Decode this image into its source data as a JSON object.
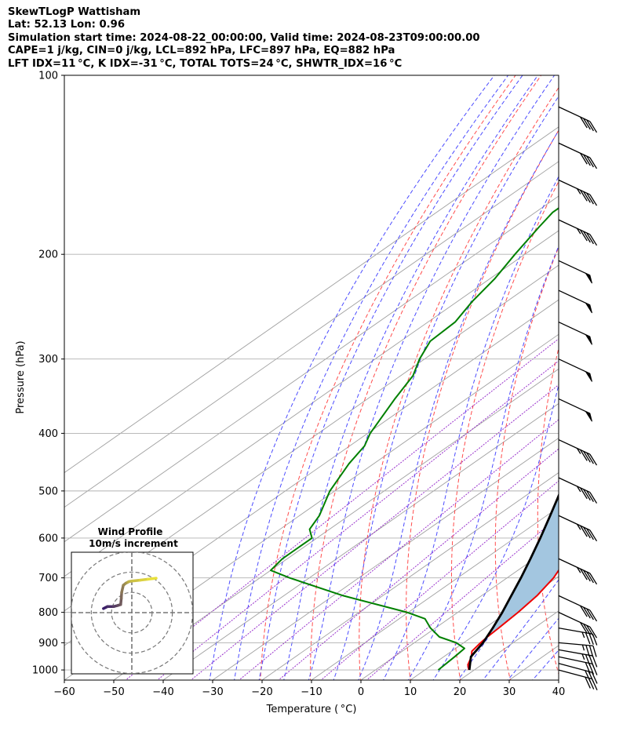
{
  "header": {
    "line1": "SkewTLogP Wattisham",
    "line2": "Lat: 52.13   Lon: 0.96",
    "line3": "Simulation start time: 2024-08-22_00:00:00, Valid time: 2024-08-23T09:00:00.00",
    "line4": "CAPE=1 j/kg, CIN=0 j/kg, LCL=892 hPa, LFC=897 hPa, EQ=882 hPa",
    "line5": "LFT IDX=11 °C, K IDX=-31 °C, TOTAL TOTS=24 °C, SHWTR_IDX=16 °C"
  },
  "colors": {
    "temperature": "#ee0000",
    "dewpoint": "#008000",
    "parcel": "#000000",
    "cape_fill": "#a3c6e0",
    "dry_adiabat": "#ff4c4c",
    "moist_adiabat": "#4c4cff",
    "mixing_ratio": "#9932cc",
    "isotherm": "#a0a0a0",
    "hodo_start": "#3b1f6a",
    "hodo_end": "#e8e03c"
  },
  "chart_data": {
    "type": "line",
    "title": "SkewTLogP Wattisham",
    "xlabel": "Temperature ( °C)",
    "ylabel": "Pressure (hPa)",
    "xlim": [
      -60,
      40
    ],
    "ylim": [
      1040,
      100
    ],
    "y_scale": "log",
    "skew_offset_deg_per_log10_p": 172,
    "x_ticks": [
      -60,
      -50,
      -40,
      -30,
      -20,
      -10,
      0,
      10,
      20,
      30,
      40
    ],
    "x_tick_labels": [
      "−60",
      "−50",
      "−40",
      "−30",
      "−20",
      "−10",
      "0",
      "10",
      "20",
      "30",
      "40"
    ],
    "y_ticks": [
      1000,
      900,
      800,
      700,
      600,
      500,
      400,
      300,
      200,
      100
    ],
    "y_tick_labels": [
      "1000",
      "900",
      "800",
      "700",
      "600",
      "500",
      "400",
      "300",
      "200",
      "100"
    ],
    "grid": true,
    "series": [
      {
        "role": "temperature",
        "points": [
          [
            1000,
            18.9
          ],
          [
            980,
            17.2
          ],
          [
            950,
            15.6
          ],
          [
            930,
            14.1
          ],
          [
            900,
            13.4
          ],
          [
            880,
            13.1
          ],
          [
            850,
            12.8
          ],
          [
            800,
            12.2
          ],
          [
            750,
            11.2
          ],
          [
            700,
            9.4
          ],
          [
            650,
            6.5
          ],
          [
            600,
            2.8
          ],
          [
            550,
            -1.4
          ],
          [
            500,
            -6.4
          ],
          [
            450,
            -11.6
          ],
          [
            400,
            -16.6
          ],
          [
            350,
            -22.6
          ],
          [
            300,
            -29.4
          ],
          [
            280,
            -33.0
          ],
          [
            250,
            -39.0
          ],
          [
            230,
            -42.5
          ],
          [
            210,
            -46.5
          ],
          [
            200,
            -49.0
          ],
          [
            180,
            -52.5
          ],
          [
            160,
            -55.5
          ],
          [
            150,
            -57.0
          ],
          [
            140,
            -58.5
          ],
          [
            130,
            -60.0
          ],
          [
            120,
            -61.5
          ],
          [
            110,
            -63.0
          ],
          [
            100,
            -64.5
          ]
        ]
      },
      {
        "role": "dewpoint",
        "points": [
          [
            1000,
            12.7
          ],
          [
            950,
            12.2
          ],
          [
            920,
            11.8
          ],
          [
            900,
            8.5
          ],
          [
            880,
            3.4
          ],
          [
            850,
            -1.0
          ],
          [
            820,
            -4.8
          ],
          [
            800,
            -10.3
          ],
          [
            750,
            -28.0
          ],
          [
            700,
            -44.0
          ],
          [
            680,
            -50.0
          ],
          [
            650,
            -51.0
          ],
          [
            600,
            -51.0
          ],
          [
            580,
            -54.0
          ],
          [
            550,
            -56.0
          ],
          [
            500,
            -61.0
          ],
          [
            450,
            -65.0
          ],
          [
            420,
            -67.0
          ],
          [
            400,
            -69.5
          ],
          [
            350,
            -74.5
          ],
          [
            320,
            -77.5
          ],
          [
            300,
            -81.0
          ],
          [
            280,
            -84.0
          ],
          [
            260,
            -84.5
          ],
          [
            240,
            -87.0
          ],
          [
            220,
            -89.0
          ],
          [
            200,
            -92.0
          ],
          [
            180,
            -95.0
          ],
          [
            170,
            -96.5
          ],
          [
            150,
            -96.5
          ],
          [
            100,
            -101.0
          ]
        ]
      },
      {
        "role": "parcel",
        "points": [
          [
            1000,
            19.0
          ],
          [
            950,
            15.5
          ],
          [
            900,
            13.9
          ],
          [
            850,
            11.6
          ],
          [
            800,
            9.0
          ],
          [
            750,
            6.0
          ],
          [
            700,
            2.8
          ],
          [
            650,
            -0.8
          ],
          [
            600,
            -4.8
          ],
          [
            550,
            -9.3
          ],
          [
            500,
            -14.3
          ],
          [
            450,
            -20.2
          ],
          [
            400,
            -27.2
          ],
          [
            350,
            -35.4
          ],
          [
            300,
            -45.0
          ],
          [
            250,
            -57.2
          ],
          [
            200,
            -72.0
          ],
          [
            150,
            -91.0
          ],
          [
            100,
            -117.0
          ]
        ]
      }
    ],
    "isotherms": [
      -120,
      -110,
      -100,
      -90,
      -80,
      -70,
      -60,
      -50,
      -40,
      -30,
      -20,
      -10,
      0,
      10,
      20,
      30,
      40
    ],
    "dry_adiabats_K": [
      250,
      260,
      270,
      280,
      290,
      300,
      310,
      320,
      330,
      340,
      350,
      360,
      370,
      380,
      390
    ],
    "moist_adiabats_C": [
      -30,
      -25,
      -20,
      -15,
      -10,
      -5,
      0,
      5,
      10,
      15,
      20,
      25,
      30,
      35
    ],
    "mixing_ratios_gkg": [
      0.05,
      0.1,
      0.2,
      0.5,
      1,
      2,
      4
    ],
    "wind_barbs": [
      {
        "p": 1000,
        "dir": 255,
        "speed_kt": 30
      },
      {
        "p": 975,
        "dir": 255,
        "speed_kt": 30
      },
      {
        "p": 950,
        "dir": 258,
        "speed_kt": 30
      },
      {
        "p": 925,
        "dir": 260,
        "speed_kt": 35
      },
      {
        "p": 900,
        "dir": 265,
        "speed_kt": 35
      },
      {
        "p": 850,
        "dir": 260,
        "speed_kt": 35
      },
      {
        "p": 800,
        "dir": 245,
        "speed_kt": 40
      },
      {
        "p": 750,
        "dir": 245,
        "speed_kt": 40
      },
      {
        "p": 650,
        "dir": 245,
        "speed_kt": 45
      },
      {
        "p": 550,
        "dir": 245,
        "speed_kt": 45
      },
      {
        "p": 475,
        "dir": 245,
        "speed_kt": 45
      },
      {
        "p": 410,
        "dir": 245,
        "speed_kt": 45
      },
      {
        "p": 350,
        "dir": 245,
        "speed_kt": 50
      },
      {
        "p": 300,
        "dir": 245,
        "speed_kt": 50
      },
      {
        "p": 260,
        "dir": 245,
        "speed_kt": 50
      },
      {
        "p": 230,
        "dir": 245,
        "speed_kt": 50
      },
      {
        "p": 205,
        "dir": 245,
        "speed_kt": 50
      },
      {
        "p": 175,
        "dir": 245,
        "speed_kt": 45
      },
      {
        "p": 150,
        "dir": 245,
        "speed_kt": 45
      },
      {
        "p": 130,
        "dir": 245,
        "speed_kt": 40
      },
      {
        "p": 113,
        "dir": 245,
        "speed_kt": 40
      }
    ],
    "hodograph": {
      "title": "Wind Profile",
      "subtitle": "10m/s increment",
      "ring_step_ms": 10,
      "rings": 3,
      "range_ms": 30,
      "points": [
        [
          -14,
          2
        ],
        [
          -12,
          3
        ],
        [
          -9,
          3
        ],
        [
          -7,
          3.5
        ],
        [
          -5.5,
          4
        ],
        [
          -5.2,
          7
        ],
        [
          -5,
          10
        ],
        [
          -4.2,
          13.5
        ],
        [
          -3,
          14.5
        ],
        [
          -2,
          15
        ],
        [
          -1.5,
          15.3
        ],
        [
          0,
          15.6
        ],
        [
          4,
          16
        ],
        [
          8,
          16.5
        ],
        [
          12,
          17
        ]
      ]
    }
  }
}
